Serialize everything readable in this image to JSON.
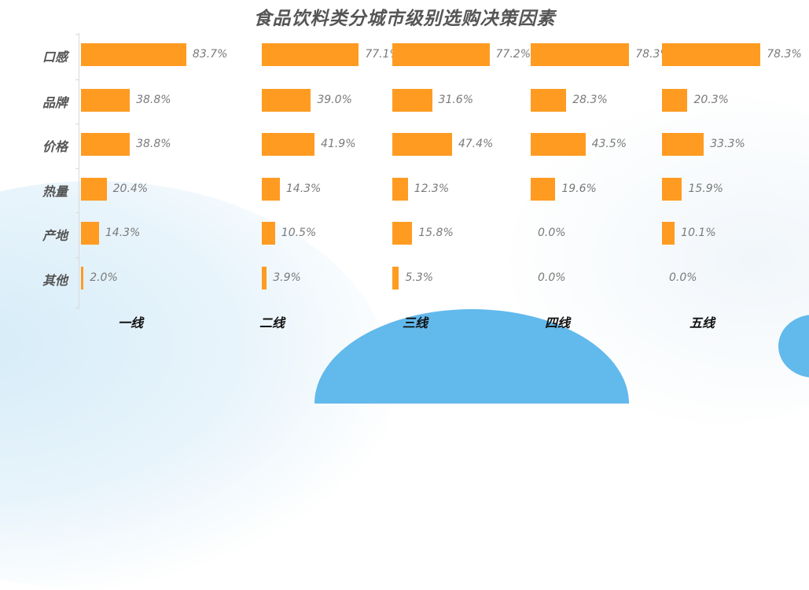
{
  "title": "食品饮料类分城市级别选购决策因素",
  "colors": {
    "bar": "#ff9b21",
    "title": "#555555",
    "value_text": "#7a7a7a",
    "group_label": "#111111",
    "accent_wave": "#62b9ec"
  },
  "categories": [
    "口感",
    "品牌",
    "价格",
    "热量",
    "产地",
    "其他"
  ],
  "groups": [
    {
      "label": "一线",
      "values": [
        "83.7%",
        "38.8%",
        "38.8%",
        "20.4%",
        "14.3%",
        "2.0%"
      ]
    },
    {
      "label": "二线",
      "values": [
        "77.1%",
        "39.0%",
        "41.9%",
        "14.3%",
        "10.5%",
        "3.9%"
      ]
    },
    {
      "label": "三线",
      "values": [
        "77.2%",
        "31.6%",
        "47.4%",
        "12.3%",
        "15.8%",
        "5.3%"
      ]
    },
    {
      "label": "四线",
      "values": [
        "78.3%",
        "28.3%",
        "43.5%",
        "19.6%",
        "0.0%",
        "0.0%"
      ]
    },
    {
      "label": "五线",
      "values": [
        "78.3%",
        "20.3%",
        "33.3%",
        "15.9%",
        "10.1%",
        "0.0%"
      ]
    }
  ],
  "chart_data": {
    "type": "bar",
    "orientation": "horizontal",
    "layout": "small-multiples",
    "title": "食品饮料类分城市级别选购决策因素",
    "categories": [
      "口感",
      "品牌",
      "价格",
      "热量",
      "产地",
      "其他"
    ],
    "series": [
      {
        "name": "一线",
        "values": [
          83.7,
          38.8,
          38.8,
          20.4,
          14.3,
          2.0
        ]
      },
      {
        "name": "二线",
        "values": [
          77.1,
          39.0,
          41.9,
          14.3,
          10.5,
          3.9
        ]
      },
      {
        "name": "三线",
        "values": [
          77.2,
          31.6,
          47.4,
          12.3,
          15.8,
          5.3
        ]
      },
      {
        "name": "四线",
        "values": [
          78.3,
          28.3,
          43.5,
          19.6,
          0.0,
          0.0
        ]
      },
      {
        "name": "五线",
        "values": [
          78.3,
          20.3,
          33.3,
          15.9,
          10.1,
          0.0
        ]
      }
    ],
    "xlabel": "",
    "ylabel": "",
    "unit": "%",
    "grid": false,
    "legend": "none",
    "data_labels": true
  }
}
